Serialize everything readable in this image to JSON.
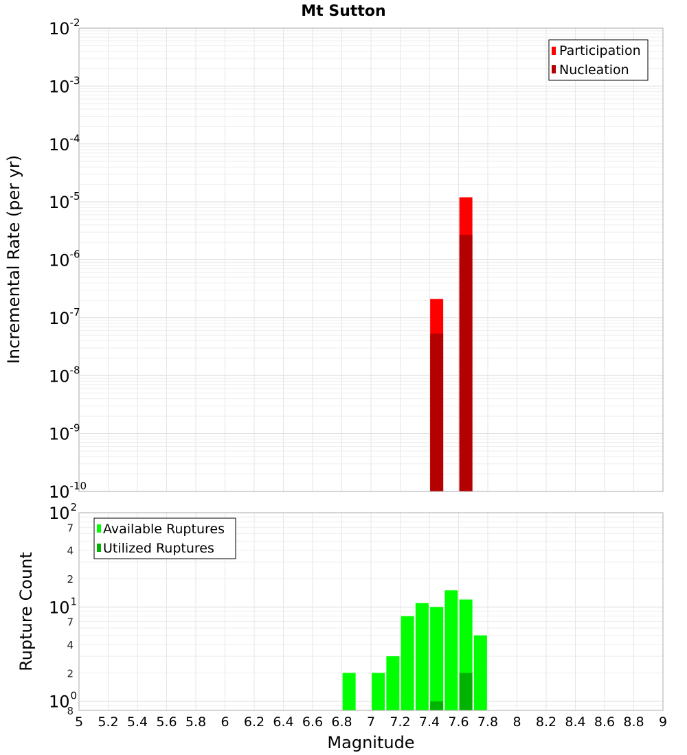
{
  "chart_data": [
    {
      "type": "bar",
      "title": "Mt Sutton",
      "xlabel": "",
      "ylabel": "Incremental Rate (per yr)",
      "xlim": [
        5,
        9
      ],
      "ylim": [
        1e-10,
        0.01
      ],
      "yscale": "log",
      "grid": true,
      "legend_position": "top-right",
      "y_tick_exponents": [
        "-2",
        "-3",
        "-4",
        "-5",
        "-6",
        "-7",
        "-8",
        "-9",
        "-10"
      ],
      "series": [
        {
          "name": "Participation",
          "color": "#ff0000",
          "x": [
            7.45,
            7.65
          ],
          "values": [
            2.1e-07,
            1.2e-05
          ]
        },
        {
          "name": "Nucleation",
          "color": "#b30000",
          "x": [
            7.45,
            7.65
          ],
          "values": [
            5.3e-08,
            2.7e-06
          ]
        }
      ]
    },
    {
      "type": "bar",
      "title": "",
      "xlabel": "Magnitude",
      "ylabel": "Rupture Count",
      "xlim": [
        5,
        9
      ],
      "ylim": [
        0.8,
        100
      ],
      "yscale": "log",
      "grid": true,
      "legend_position": "top-left",
      "x_ticks": [
        "5",
        "5.2",
        "5.4",
        "5.6",
        "5.8",
        "6",
        "6.2",
        "6.4",
        "6.6",
        "6.8",
        "7",
        "7.2",
        "7.4",
        "7.6",
        "7.8",
        "8",
        "8.2",
        "8.4",
        "8.6",
        "8.8",
        "9"
      ],
      "y_major_ticks": [
        {
          "value": 100,
          "base": "10",
          "exp": "2"
        },
        {
          "value": 10,
          "base": "10",
          "exp": "1"
        },
        {
          "value": 1,
          "base": "10",
          "exp": "0"
        }
      ],
      "y_minor_ticks": [
        {
          "value": 70,
          "label": "7"
        },
        {
          "value": 40,
          "label": "4"
        },
        {
          "value": 20,
          "label": "2"
        },
        {
          "value": 7,
          "label": "7"
        },
        {
          "value": 4,
          "label": "4"
        },
        {
          "value": 2,
          "label": "2"
        },
        {
          "value": 0.8,
          "label": "8"
        }
      ],
      "series": [
        {
          "name": "Available Ruptures",
          "color": "#00ff00",
          "x": [
            6.85,
            7.05,
            7.15,
            7.25,
            7.35,
            7.45,
            7.55,
            7.65,
            7.75
          ],
          "values": [
            2,
            2,
            3,
            8,
            11,
            10,
            15,
            12,
            5
          ]
        },
        {
          "name": "Utilized Ruptures",
          "color": "#00b300",
          "x": [
            7.45,
            7.65
          ],
          "values": [
            1,
            2
          ]
        }
      ]
    }
  ]
}
